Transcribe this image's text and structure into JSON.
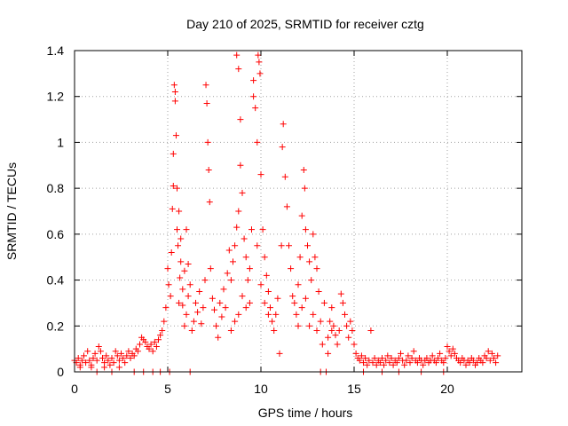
{
  "chart_data": {
    "type": "scatter",
    "title": "Day 210 of 2025, SRMTID for receiver cztg",
    "xlabel": "GPS time / hours",
    "ylabel": "SRMTID / TECUs",
    "xlim": [
      0,
      24
    ],
    "ylim": [
      0,
      1.4
    ],
    "xticks": [
      0,
      5,
      10,
      15,
      20
    ],
    "xtick_labels": [
      "0",
      "5",
      "10",
      "15",
      "20"
    ],
    "yticks": [
      0,
      0.2,
      0.4,
      0.6,
      0.8,
      1,
      1.2,
      1.4
    ],
    "ytick_labels": [
      "0",
      "0.2",
      "0.4",
      "0.6",
      "0.8",
      "1",
      "1.2",
      "1.4"
    ],
    "grid": true,
    "marker": "plus",
    "color": "#ff0000",
    "series": [
      {
        "name": "SRMTID",
        "points": [
          [
            0.0,
            0.05
          ],
          [
            0.1,
            0.04
          ],
          [
            0.2,
            0.06
          ],
          [
            0.3,
            0.03
          ],
          [
            0.4,
            0.05
          ],
          [
            0.5,
            0.07
          ],
          [
            0.6,
            0.04
          ],
          [
            0.7,
            0.09
          ],
          [
            0.8,
            0.05
          ],
          [
            0.9,
            0.03
          ],
          [
            1.0,
            0.06
          ],
          [
            1.1,
            0.08
          ],
          [
            1.2,
            0.05
          ],
          [
            1.3,
            0.11
          ],
          [
            1.4,
            0.09
          ],
          [
            1.5,
            0.06
          ],
          [
            1.6,
            0.04
          ],
          [
            1.7,
            0.07
          ],
          [
            1.8,
            0.05
          ],
          [
            1.9,
            0.03
          ],
          [
            2.0,
            0.06
          ],
          [
            2.1,
            0.04
          ],
          [
            2.2,
            0.09
          ],
          [
            2.3,
            0.07
          ],
          [
            2.4,
            0.05
          ],
          [
            2.5,
            0.08
          ],
          [
            2.6,
            0.06
          ],
          [
            2.7,
            0.04
          ],
          [
            2.8,
            0.07
          ],
          [
            2.9,
            0.09
          ],
          [
            3.0,
            0.06
          ],
          [
            3.1,
            0.08
          ],
          [
            3.2,
            0.07
          ],
          [
            3.3,
            0.1
          ],
          [
            3.4,
            0.09
          ],
          [
            3.5,
            0.12
          ],
          [
            3.6,
            0.15
          ],
          [
            3.7,
            0.14
          ],
          [
            3.8,
            0.13
          ],
          [
            3.9,
            0.11
          ],
          [
            4.0,
            0.1
          ],
          [
            4.1,
            0.12
          ],
          [
            4.2,
            0.09
          ],
          [
            4.3,
            0.13
          ],
          [
            4.4,
            0.11
          ],
          [
            4.5,
            0.14
          ],
          [
            4.6,
            0.16
          ],
          [
            4.7,
            0.18
          ],
          [
            4.8,
            0.22
          ],
          [
            4.9,
            0.28
          ],
          [
            0.3,
            0.02
          ],
          [
            0.9,
            0.02
          ],
          [
            1.6,
            0.02
          ],
          [
            2.4,
            0.02
          ],
          [
            3.2,
            0.0
          ],
          [
            3.7,
            0.0
          ],
          [
            4.2,
            0.0
          ],
          [
            4.6,
            0.0
          ],
          [
            1.2,
            0.0
          ],
          [
            2.0,
            0.0
          ],
          [
            5.0,
            0.45
          ],
          [
            5.05,
            0.38
          ],
          [
            5.1,
            0.0
          ],
          [
            5.15,
            0.33
          ],
          [
            5.2,
            0.52
          ],
          [
            5.25,
            0.71
          ],
          [
            5.3,
            0.81
          ],
          [
            5.35,
            1.25
          ],
          [
            5.4,
            1.22
          ],
          [
            5.45,
            1.03
          ],
          [
            5.5,
            0.62
          ],
          [
            5.55,
            0.55
          ],
          [
            5.6,
            0.3
          ],
          [
            5.65,
            0.41
          ],
          [
            5.7,
            0.58
          ],
          [
            5.8,
            0.36
          ],
          [
            5.9,
            0.44
          ],
          [
            6.0,
            0.25
          ],
          [
            6.1,
            0.33
          ],
          [
            6.2,
            0.0
          ],
          [
            5.3,
            0.95
          ],
          [
            5.4,
            1.18
          ],
          [
            5.5,
            0.8
          ],
          [
            5.6,
            0.7
          ],
          [
            5.7,
            0.48
          ],
          [
            5.8,
            0.29
          ],
          [
            5.9,
            0.2
          ],
          [
            6.0,
            0.62
          ],
          [
            6.1,
            0.47
          ],
          [
            6.2,
            0.38
          ],
          [
            6.3,
            0.18
          ],
          [
            6.4,
            0.22
          ],
          [
            6.5,
            0.3
          ],
          [
            6.6,
            0.26
          ],
          [
            6.7,
            0.35
          ],
          [
            6.8,
            0.21
          ],
          [
            6.9,
            0.28
          ],
          [
            7.0,
            0.4
          ],
          [
            7.05,
            1.25
          ],
          [
            7.1,
            1.17
          ],
          [
            7.15,
            1.0
          ],
          [
            7.2,
            0.88
          ],
          [
            7.25,
            0.74
          ],
          [
            7.3,
            0.45
          ],
          [
            7.4,
            0.32
          ],
          [
            7.5,
            0.27
          ],
          [
            7.6,
            0.2
          ],
          [
            7.7,
            0.15
          ],
          [
            7.8,
            0.3
          ],
          [
            7.9,
            0.24
          ],
          [
            8.0,
            0.36
          ],
          [
            8.1,
            0.28
          ],
          [
            8.2,
            0.43
          ],
          [
            8.3,
            0.53
          ],
          [
            8.4,
            0.4
          ],
          [
            8.5,
            0.48
          ],
          [
            8.6,
            0.55
          ],
          [
            8.7,
            0.63
          ],
          [
            8.8,
            0.7
          ],
          [
            8.9,
            0.9
          ],
          [
            8.7,
            1.38
          ],
          [
            8.8,
            1.32
          ],
          [
            8.9,
            1.1
          ],
          [
            9.0,
            0.78
          ],
          [
            9.1,
            0.58
          ],
          [
            9.2,
            0.5
          ],
          [
            9.3,
            0.4
          ],
          [
            9.4,
            0.3
          ],
          [
            9.5,
            0.62
          ],
          [
            9.6,
            1.2
          ],
          [
            9.6,
            1.27
          ],
          [
            9.7,
            1.15
          ],
          [
            9.8,
            1.0
          ],
          [
            9.85,
            1.38
          ],
          [
            9.9,
            1.35
          ],
          [
            9.95,
            1.3
          ],
          [
            10.0,
            0.86
          ],
          [
            10.1,
            0.62
          ],
          [
            10.2,
            0.5
          ],
          [
            10.3,
            0.42
          ],
          [
            8.4,
            0.18
          ],
          [
            8.6,
            0.22
          ],
          [
            8.8,
            0.25
          ],
          [
            9.0,
            0.33
          ],
          [
            9.2,
            0.28
          ],
          [
            9.4,
            0.45
          ],
          [
            9.8,
            0.55
          ],
          [
            10.0,
            0.38
          ],
          [
            10.2,
            0.3
          ],
          [
            10.4,
            0.25
          ],
          [
            10.4,
            0.35
          ],
          [
            10.5,
            0.28
          ],
          [
            10.6,
            0.22
          ],
          [
            10.7,
            0.18
          ],
          [
            10.8,
            0.25
          ],
          [
            10.9,
            0.32
          ],
          [
            11.0,
            0.08
          ],
          [
            11.1,
            0.55
          ],
          [
            11.15,
            0.98
          ],
          [
            11.2,
            1.08
          ],
          [
            11.3,
            0.85
          ],
          [
            11.4,
            0.72
          ],
          [
            11.5,
            0.55
          ],
          [
            11.6,
            0.45
          ],
          [
            11.7,
            0.33
          ],
          [
            11.8,
            0.3
          ],
          [
            11.9,
            0.25
          ],
          [
            12.0,
            0.38
          ],
          [
            12.1,
            0.5
          ],
          [
            12.2,
            0.68
          ],
          [
            12.3,
            0.88
          ],
          [
            12.35,
            0.8
          ],
          [
            12.4,
            0.62
          ],
          [
            12.5,
            0.55
          ],
          [
            12.6,
            0.48
          ],
          [
            12.7,
            0.4
          ],
          [
            12.8,
            0.6
          ],
          [
            12.9,
            0.5
          ],
          [
            13.0,
            0.45
          ],
          [
            13.1,
            0.35
          ],
          [
            12.0,
            0.2
          ],
          [
            12.2,
            0.28
          ],
          [
            12.4,
            0.32
          ],
          [
            12.6,
            0.2
          ],
          [
            12.8,
            0.25
          ],
          [
            13.0,
            0.18
          ],
          [
            13.2,
            0.22
          ],
          [
            13.4,
            0.3
          ],
          [
            13.6,
            0.08
          ],
          [
            13.8,
            0.18
          ],
          [
            13.2,
            0.0
          ],
          [
            13.3,
            0.12
          ],
          [
            13.5,
            0.0
          ],
          [
            13.6,
            0.15
          ],
          [
            13.7,
            0.22
          ],
          [
            13.8,
            0.28
          ],
          [
            13.9,
            0.2
          ],
          [
            14.0,
            0.16
          ],
          [
            14.1,
            0.12
          ],
          [
            14.2,
            0.18
          ],
          [
            14.3,
            0.34
          ],
          [
            14.4,
            0.3
          ],
          [
            14.5,
            0.25
          ],
          [
            14.6,
            0.2
          ],
          [
            14.7,
            0.15
          ],
          [
            14.8,
            0.22
          ],
          [
            14.9,
            0.18
          ],
          [
            15.0,
            0.12
          ],
          [
            15.1,
            0.08
          ],
          [
            15.2,
            0.06
          ],
          [
            15.3,
            0.05
          ],
          [
            15.4,
            0.07
          ],
          [
            15.5,
            0.04
          ],
          [
            15.6,
            0.06
          ],
          [
            15.7,
            0.03
          ],
          [
            15.8,
            0.05
          ],
          [
            15.9,
            0.18
          ],
          [
            16.0,
            0.04
          ],
          [
            16.1,
            0.06
          ],
          [
            16.2,
            0.03
          ],
          [
            16.3,
            0.05
          ],
          [
            16.4,
            0.04
          ],
          [
            16.5,
            0.06
          ],
          [
            16.6,
            0.03
          ],
          [
            16.7,
            0.05
          ],
          [
            16.8,
            0.07
          ],
          [
            16.9,
            0.04
          ],
          [
            17.0,
            0.06
          ],
          [
            17.1,
            0.03
          ],
          [
            17.2,
            0.05
          ],
          [
            17.3,
            0.04
          ],
          [
            17.4,
            0.06
          ],
          [
            17.5,
            0.08
          ],
          [
            17.6,
            0.05
          ],
          [
            17.7,
            0.03
          ],
          [
            17.8,
            0.05
          ],
          [
            17.9,
            0.07
          ],
          [
            18.0,
            0.04
          ],
          [
            18.1,
            0.06
          ],
          [
            18.2,
            0.09
          ],
          [
            18.3,
            0.05
          ],
          [
            18.4,
            0.04
          ],
          [
            18.5,
            0.06
          ],
          [
            18.6,
            0.05
          ],
          [
            18.7,
            0.03
          ],
          [
            18.8,
            0.05
          ],
          [
            18.9,
            0.06
          ],
          [
            19.0,
            0.04
          ],
          [
            19.1,
            0.05
          ],
          [
            19.2,
            0.07
          ],
          [
            19.3,
            0.05
          ],
          [
            19.4,
            0.04
          ],
          [
            19.5,
            0.06
          ],
          [
            19.6,
            0.08
          ],
          [
            19.7,
            0.05
          ],
          [
            19.8,
            0.04
          ],
          [
            19.9,
            0.06
          ],
          [
            20.0,
            0.11
          ],
          [
            20.1,
            0.09
          ],
          [
            20.2,
            0.07
          ],
          [
            20.3,
            0.1
          ],
          [
            20.4,
            0.08
          ],
          [
            20.5,
            0.06
          ],
          [
            20.6,
            0.05
          ],
          [
            20.7,
            0.04
          ],
          [
            20.8,
            0.06
          ],
          [
            20.9,
            0.05
          ],
          [
            21.0,
            0.03
          ],
          [
            21.1,
            0.05
          ],
          [
            21.2,
            0.04
          ],
          [
            21.3,
            0.06
          ],
          [
            21.4,
            0.05
          ],
          [
            21.5,
            0.03
          ],
          [
            21.6,
            0.04
          ],
          [
            21.7,
            0.06
          ],
          [
            21.8,
            0.05
          ],
          [
            21.9,
            0.04
          ],
          [
            22.0,
            0.07
          ],
          [
            22.1,
            0.06
          ],
          [
            22.2,
            0.09
          ],
          [
            22.3,
            0.05
          ],
          [
            22.4,
            0.08
          ],
          [
            22.5,
            0.06
          ],
          [
            22.6,
            0.04
          ],
          [
            22.7,
            0.07
          ],
          [
            15.5,
            0.0
          ],
          [
            16.5,
            0.0
          ],
          [
            17.4,
            0.0
          ],
          [
            18.6,
            0.0
          ],
          [
            19.8,
            0.0
          ]
        ]
      }
    ]
  }
}
